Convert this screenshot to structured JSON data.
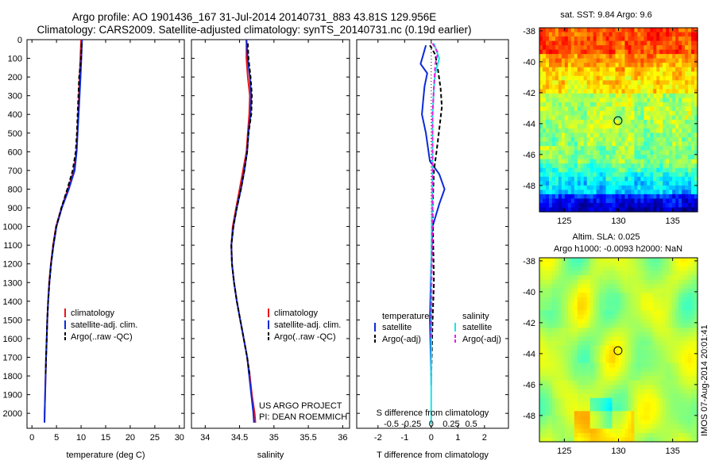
{
  "title": {
    "line1": "Argo profile: AO 1901436_167 31-Jul-2014 20140731_883 43.81S 129.956E",
    "line2": "Climatology: CARS2009. Satellite-adjusted climatology: synTS_20140731.nc (0.19d earlier)"
  },
  "colors": {
    "climatology": "#e8141c",
    "satellite": "#0b2ad8",
    "argo": "#000000",
    "salinity_sat": "#19e6e6",
    "salinity_argo": "#e61ee6"
  },
  "watermark": "IMOS 07-Aug-2014 20:01:41",
  "project_note": {
    "line1": "US ARGO PROJECT",
    "line2": "PI: DEAN ROEMMICH"
  },
  "chart_data": [
    {
      "type": "line",
      "id": "temperature",
      "xlabel": "temperature (deg C)",
      "ylabel": "",
      "xlim": [
        -1,
        31
      ],
      "ylim": [
        2080,
        0
      ],
      "xticks": [
        0,
        5,
        10,
        15,
        20,
        25,
        30
      ],
      "yticks": [
        0,
        100,
        200,
        300,
        400,
        500,
        600,
        700,
        800,
        900,
        1000,
        1100,
        1200,
        1300,
        1400,
        1500,
        1600,
        1700,
        1800,
        1900,
        2000
      ],
      "legend": [
        "climatology",
        "satellite-adj. clim.",
        "Argo(..raw -QC)"
      ],
      "series": [
        {
          "name": "climatology",
          "color": "#e8141c",
          "dash": "",
          "points": [
            [
              10,
              0
            ],
            [
              9.85,
              100
            ],
            [
              9.7,
              200
            ],
            [
              9.55,
              300
            ],
            [
              9.4,
              400
            ],
            [
              9.25,
              500
            ],
            [
              9.05,
              600
            ],
            [
              8.5,
              700
            ],
            [
              7.3,
              800
            ],
            [
              6.0,
              900
            ],
            [
              4.9,
              1000
            ],
            [
              4.3,
              1100
            ],
            [
              3.85,
              1200
            ],
            [
              3.5,
              1300
            ],
            [
              3.3,
              1400
            ],
            [
              3.12,
              1500
            ],
            [
              3.0,
              1600
            ],
            [
              2.88,
              1700
            ],
            [
              2.78,
              1800
            ],
            [
              2.68,
              1900
            ],
            [
              2.58,
              2000
            ],
            [
              2.55,
              2050
            ]
          ]
        },
        {
          "name": "satellite-adj. clim.",
          "color": "#0b2ad8",
          "dash": "",
          "points": [
            [
              10.2,
              0
            ],
            [
              10.05,
              100
            ],
            [
              9.9,
              200
            ],
            [
              9.7,
              300
            ],
            [
              9.5,
              400
            ],
            [
              9.3,
              500
            ],
            [
              9.1,
              600
            ],
            [
              8.7,
              700
            ],
            [
              7.5,
              800
            ],
            [
              6.1,
              900
            ],
            [
              5.0,
              1000
            ],
            [
              4.4,
              1100
            ],
            [
              3.9,
              1200
            ],
            [
              3.55,
              1300
            ],
            [
              3.3,
              1400
            ],
            [
              3.12,
              1500
            ],
            [
              3.0,
              1600
            ],
            [
              2.88,
              1700
            ],
            [
              2.78,
              1800
            ],
            [
              2.68,
              1900
            ],
            [
              2.58,
              2000
            ],
            [
              2.55,
              2050
            ]
          ]
        },
        {
          "name": "Argo(..raw -QC)",
          "color": "#000000",
          "dash": "5,3",
          "points": [
            [
              10.1,
              20
            ],
            [
              10.0,
              100
            ],
            [
              9.6,
              200
            ],
            [
              9.45,
              300
            ],
            [
              9.3,
              400
            ],
            [
              9.15,
              500
            ],
            [
              8.9,
              600
            ],
            [
              8.3,
              700
            ],
            [
              7.2,
              800
            ],
            [
              6.0,
              900
            ],
            [
              4.95,
              1000
            ],
            [
              4.35,
              1100
            ],
            [
              3.9,
              1200
            ],
            [
              3.55,
              1300
            ],
            [
              3.3,
              1400
            ],
            [
              3.12,
              1500
            ],
            [
              3.0,
              1600
            ],
            [
              2.88,
              1700
            ],
            [
              2.78,
              1800
            ]
          ]
        }
      ]
    },
    {
      "type": "line",
      "id": "salinity",
      "xlabel": "salinity",
      "ylabel": "",
      "xlim": [
        33.8,
        36.1
      ],
      "ylim": [
        2080,
        0
      ],
      "xticks": [
        34,
        34.5,
        35,
        35.5,
        36
      ],
      "legend": [
        "climatology",
        "satellite-adj. clim.",
        "Argo(..raw -QC)"
      ],
      "series": [
        {
          "name": "climatology",
          "color": "#e8141c",
          "dash": "",
          "points": [
            [
              34.6,
              0
            ],
            [
              34.6,
              100
            ],
            [
              34.62,
              200
            ],
            [
              34.65,
              300
            ],
            [
              34.64,
              400
            ],
            [
              34.62,
              500
            ],
            [
              34.6,
              600
            ],
            [
              34.55,
              700
            ],
            [
              34.5,
              800
            ],
            [
              34.45,
              900
            ],
            [
              34.4,
              1000
            ],
            [
              34.38,
              1100
            ],
            [
              34.39,
              1200
            ],
            [
              34.42,
              1300
            ],
            [
              34.46,
              1400
            ],
            [
              34.51,
              1500
            ],
            [
              34.56,
              1600
            ],
            [
              34.61,
              1700
            ],
            [
              34.65,
              1800
            ],
            [
              34.68,
              1900
            ],
            [
              34.72,
              2000
            ],
            [
              34.73,
              2050
            ]
          ]
        },
        {
          "name": "satellite-adj. clim.",
          "color": "#0b2ad8",
          "dash": "",
          "points": [
            [
              34.6,
              0
            ],
            [
              34.62,
              100
            ],
            [
              34.65,
              200
            ],
            [
              34.67,
              300
            ],
            [
              34.66,
              400
            ],
            [
              34.63,
              500
            ],
            [
              34.61,
              600
            ],
            [
              34.57,
              700
            ],
            [
              34.52,
              800
            ],
            [
              34.46,
              900
            ],
            [
              34.41,
              1000
            ],
            [
              34.38,
              1100
            ],
            [
              34.39,
              1200
            ],
            [
              34.42,
              1300
            ],
            [
              34.46,
              1400
            ],
            [
              34.51,
              1500
            ],
            [
              34.56,
              1600
            ],
            [
              34.61,
              1700
            ],
            [
              34.64,
              1800
            ],
            [
              34.67,
              1900
            ],
            [
              34.7,
              2000
            ],
            [
              34.71,
              2050
            ]
          ]
        },
        {
          "name": "Argo(..raw -QC)",
          "color": "#000000",
          "dash": "5,3",
          "points": [
            [
              34.62,
              20
            ],
            [
              34.63,
              100
            ],
            [
              34.66,
              200
            ],
            [
              34.68,
              300
            ],
            [
              34.67,
              400
            ],
            [
              34.63,
              500
            ],
            [
              34.61,
              600
            ],
            [
              34.57,
              700
            ],
            [
              34.52,
              800
            ],
            [
              34.46,
              900
            ],
            [
              34.41,
              1000
            ],
            [
              34.38,
              1100
            ],
            [
              34.39,
              1200
            ],
            [
              34.42,
              1300
            ],
            [
              34.46,
              1400
            ],
            [
              34.51,
              1500
            ],
            [
              34.56,
              1600
            ],
            [
              34.61,
              1700
            ],
            [
              34.65,
              1800
            ]
          ]
        }
      ]
    },
    {
      "type": "line",
      "id": "difference",
      "xlabel": "T difference from climatology",
      "xlabel2": "S difference from climatology",
      "xlim": [
        -2.8,
        2.9
      ],
      "ylim": [
        2080,
        0
      ],
      "xticks": [
        -2,
        -1,
        0,
        1,
        2
      ],
      "s_ticks": [
        {
          "v": -1.5,
          "label": "-0.5"
        },
        {
          "v": -0.75,
          "label": "-0.25"
        },
        {
          "v": 0,
          "label": "0"
        },
        {
          "v": 0.75,
          "label": "0.25"
        },
        {
          "v": 1.5,
          "label": "0.5"
        }
      ],
      "legend_titles": [
        "temperature",
        "salinity"
      ],
      "legend": [
        "satellite",
        "Argo(-adj)",
        "satellite",
        "Argo(-adj)"
      ],
      "series": [
        {
          "name": "temperature satellite",
          "color": "#0b2ad8",
          "dash": "",
          "points": [
            [
              -0.2,
              30
            ],
            [
              -0.3,
              80
            ],
            [
              -0.4,
              130
            ],
            [
              -0.15,
              180
            ],
            [
              -0.25,
              250
            ],
            [
              -0.3,
              320
            ],
            [
              -0.35,
              400
            ],
            [
              -0.2,
              500
            ],
            [
              -0.05,
              650
            ],
            [
              0.3,
              720
            ],
            [
              0.5,
              800
            ],
            [
              0.3,
              880
            ],
            [
              0.05,
              1000
            ],
            [
              0.0,
              1200
            ],
            [
              -0.05,
              1500
            ],
            [
              0.0,
              1800
            ],
            [
              0.0,
              1850
            ]
          ]
        },
        {
          "name": "temperature Argo(-adj)",
          "color": "#000000",
          "dash": "5,3",
          "points": [
            [
              -0.05,
              30
            ],
            [
              0.15,
              80
            ],
            [
              0.25,
              160
            ],
            [
              0.35,
              260
            ],
            [
              0.4,
              360
            ],
            [
              0.3,
              480
            ],
            [
              0.2,
              600
            ],
            [
              0.1,
              700
            ],
            [
              0.05,
              900
            ],
            [
              0.1,
              1300
            ],
            [
              0.05,
              1500
            ],
            [
              0.0,
              1800
            ]
          ]
        },
        {
          "name": "salinity satellite",
          "color": "#19e6e6",
          "dash": "",
          "points": [
            [
              0.1,
              20
            ],
            [
              0.2,
              60
            ],
            [
              0.3,
              100
            ],
            [
              0.15,
              180
            ],
            [
              0.1,
              260
            ],
            [
              0.05,
              400
            ],
            [
              0.05,
              700
            ],
            [
              0.03,
              900
            ],
            [
              0.0,
              1200
            ],
            [
              0.0,
              1600
            ],
            [
              0.0,
              2060
            ]
          ]
        },
        {
          "name": "salinity Argo(-adj)",
          "color": "#e61ee6",
          "dash": "5,3",
          "points": [
            [
              0.05,
              20
            ],
            [
              0.25,
              70
            ],
            [
              0.15,
              130
            ],
            [
              0.1,
              250
            ],
            [
              0.05,
              400
            ],
            [
              0.05,
              700
            ],
            [
              0.05,
              900
            ],
            [
              0.02,
              1200
            ],
            [
              0.0,
              1600
            ]
          ]
        }
      ]
    },
    {
      "type": "heatmap",
      "id": "sst-map",
      "title": "sat. SST: 9.84 Argo: 9.6",
      "xlim": [
        122.7,
        137.3
      ],
      "ylim": [
        -49.7,
        -37.8
      ],
      "xticks": [
        125,
        130,
        135
      ],
      "yticks": [
        -38,
        -40,
        -42,
        -44,
        -46,
        -48
      ],
      "marker": {
        "lon": 129.956,
        "lat": -43.81
      }
    },
    {
      "type": "heatmap",
      "id": "sla-map",
      "title": "Altim. SLA: 0.025",
      "subtitle": "Argo h1000: -0.0093 h2000: NaN",
      "xlim": [
        122.7,
        137.3
      ],
      "ylim": [
        -49.7,
        -37.8
      ],
      "xticks": [
        125,
        130,
        135
      ],
      "yticks": [
        -38,
        -40,
        -42,
        -44,
        -46,
        -48
      ],
      "marker": {
        "lon": 129.956,
        "lat": -43.81
      }
    }
  ]
}
